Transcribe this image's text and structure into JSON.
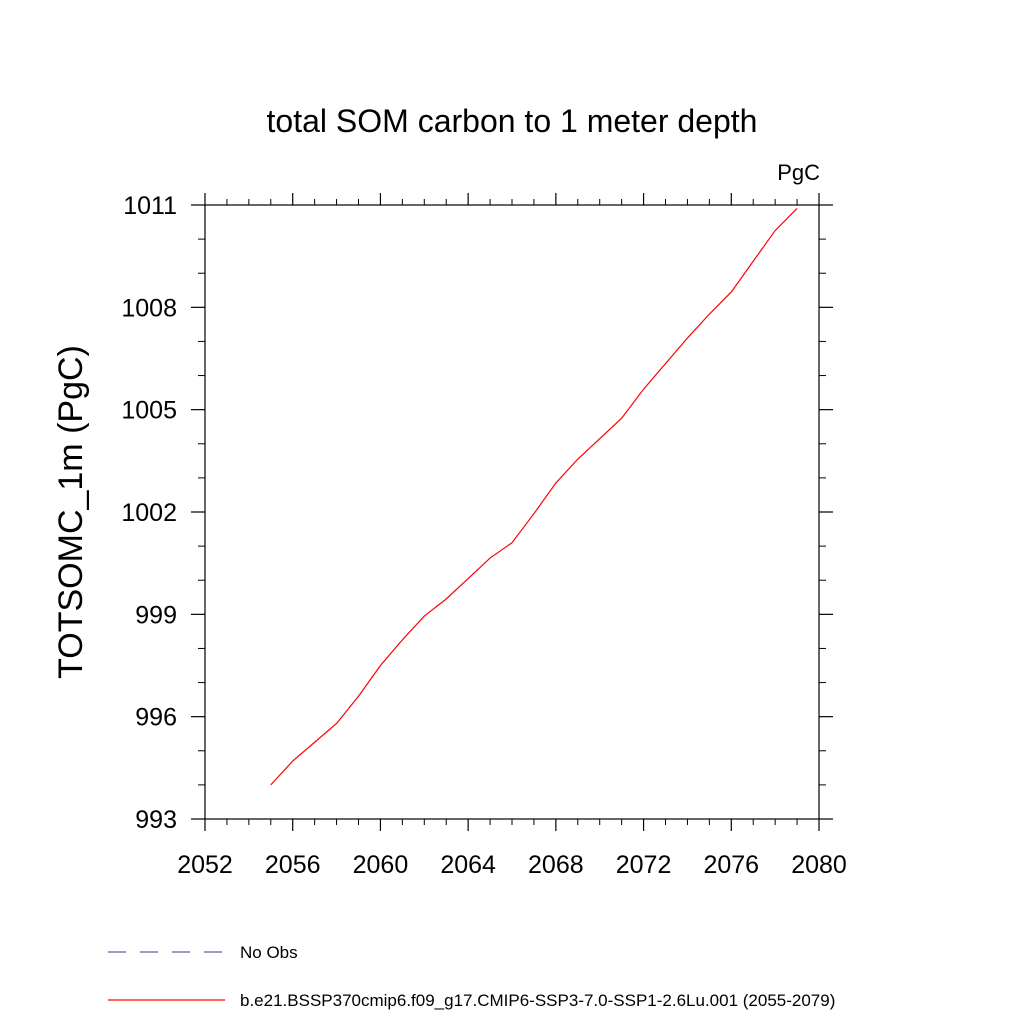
{
  "chart_data": {
    "type": "line",
    "title": "total SOM carbon to 1 meter depth",
    "units": "PgC",
    "xlabel": "",
    "ylabel": "TOTSOMC_1m  (PgC)",
    "xlim": [
      2052,
      2080
    ],
    "ylim": [
      993,
      1011
    ],
    "xticks": [
      2052,
      2056,
      2060,
      2064,
      2068,
      2072,
      2076,
      2080
    ],
    "yticks": [
      993,
      996,
      999,
      1002,
      1005,
      1008,
      1011
    ],
    "grid": false,
    "legend_placement": "bottom",
    "series": [
      {
        "name": "No Obs",
        "color": "#5a5fb0",
        "dashed": true,
        "x": [],
        "y": []
      },
      {
        "name": "b.e21.BSSP370cmip6.f09_g17.CMIP6-SSP3-7.0-SSP1-2.6Lu.001 (2055-2079)",
        "color": "#ff0000",
        "dashed": false,
        "x": [
          2055,
          2056,
          2057,
          2058,
          2059,
          2060,
          2061,
          2062,
          2063,
          2064,
          2065,
          2066,
          2067,
          2068,
          2069,
          2070,
          2071,
          2072,
          2073,
          2074,
          2075,
          2076,
          2077,
          2078,
          2079
        ],
        "y": [
          994.0,
          994.7,
          995.25,
          995.8,
          996.6,
          997.5,
          998.25,
          998.95,
          999.45,
          1000.05,
          1000.65,
          1001.1,
          1001.95,
          1002.85,
          1003.55,
          1004.15,
          1004.75,
          1005.6,
          1006.35,
          1007.1,
          1007.8,
          1008.45,
          1009.35,
          1010.25,
          1010.9
        ]
      }
    ]
  }
}
